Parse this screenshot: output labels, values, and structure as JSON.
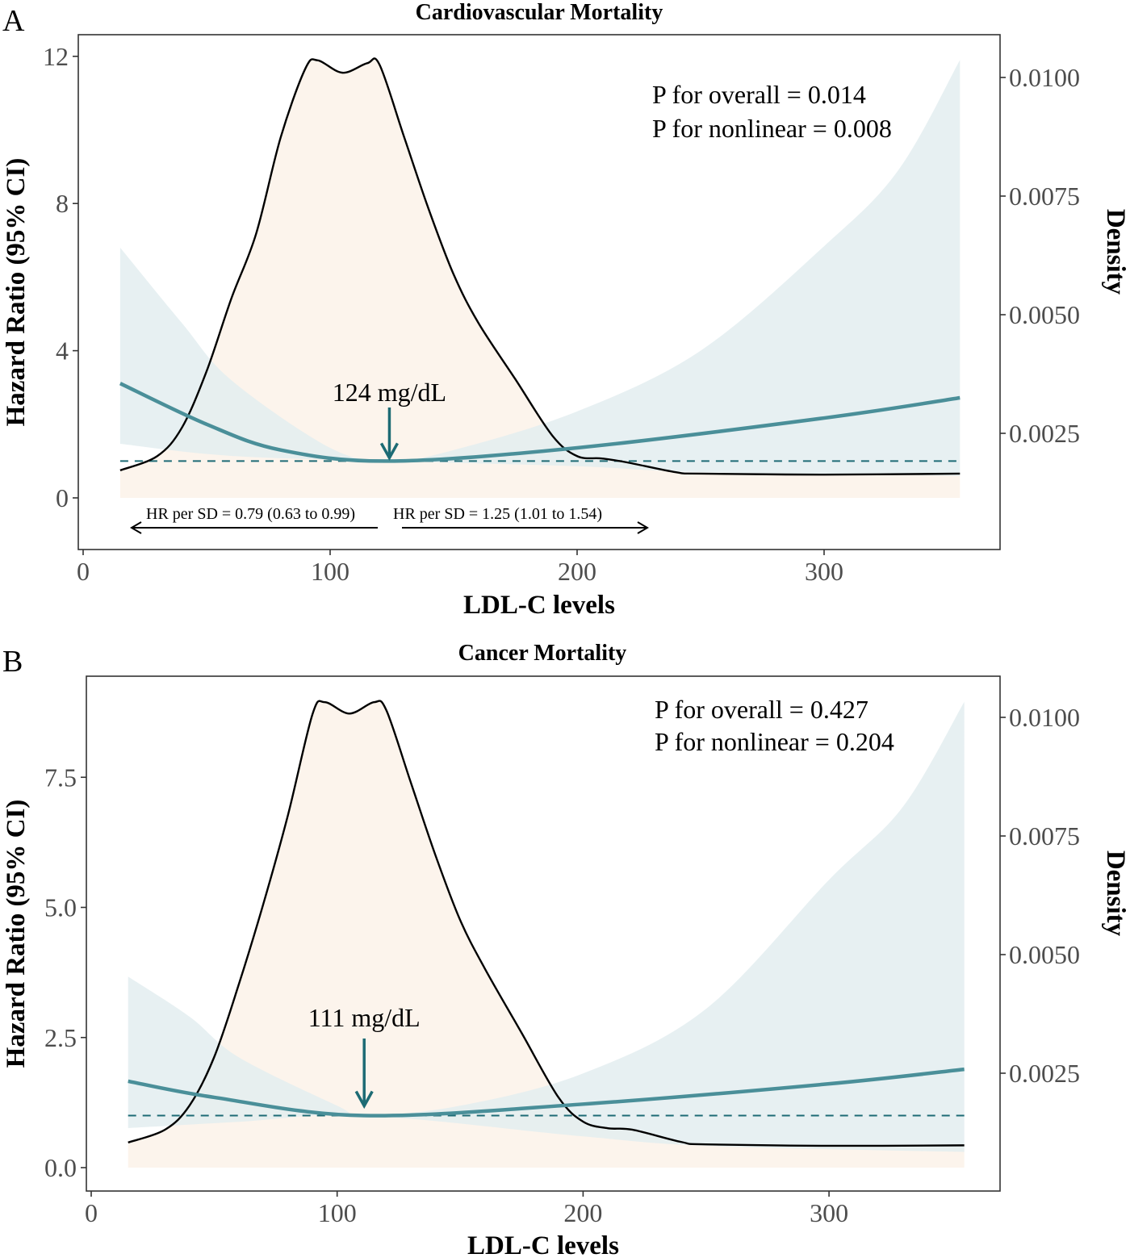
{
  "colors": {
    "ci_fill": "#e3edf0",
    "hr_line": "#4a8f99",
    "density_fill": "#fcf4ec",
    "ref_line": "#1e6b75",
    "arrow": "#1d6b74",
    "density_line": "#000000"
  },
  "chart_data": [
    {
      "panel_label": "A",
      "type": "line",
      "title": "Cardiovascular Mortality",
      "xlabel": "LDL-C levels",
      "ylabel": "Hazard Ratio (95% CI)",
      "y2label": "Density",
      "xlim": [
        0,
        370
      ],
      "ylim": [
        -1.4,
        12.6
      ],
      "y2lim": [
        0,
        0.0105
      ],
      "xticks": [
        0,
        100,
        200,
        300
      ],
      "xtick_labels": [
        "0",
        "100",
        "200",
        "300"
      ],
      "yticks": [
        0,
        4,
        8,
        12
      ],
      "ytick_labels": [
        "0",
        "4",
        "8",
        "12"
      ],
      "y2ticks": [
        0.0025,
        0.005,
        0.0075,
        0.01
      ],
      "y2tick_labels": [
        "0.0025",
        "0.0050",
        "0.0075",
        "0.0100"
      ],
      "reference_hr": 1,
      "hr": {
        "x": [
          15,
          50,
          80,
          124,
          200,
          300,
          355
        ],
        "y": [
          3.11,
          2.0,
          1.3,
          1.0,
          1.36,
          2.17,
          2.72
        ]
      },
      "ci_upper": {
        "x": [
          15,
          40,
          60,
          100,
          124,
          150,
          200,
          250,
          300,
          330,
          355
        ],
        "y": [
          6.8,
          4.75,
          3.2,
          1.36,
          1.0,
          1.3,
          2.35,
          4.0,
          6.84,
          8.9,
          11.9
        ]
      },
      "ci_lower": {
        "x": [
          15,
          60,
          124,
          200,
          250,
          355
        ],
        "y": [
          1.47,
          1.14,
          1.0,
          0.86,
          0.7,
          0.6
        ]
      },
      "density": {
        "x": [
          15,
          30,
          40,
          50,
          60,
          70,
          80,
          90,
          95,
          105,
          115,
          120,
          130,
          140,
          150,
          160,
          175,
          190,
          200,
          210,
          220,
          240,
          250,
          300,
          355
        ],
        "y": [
          0.00172,
          0.00202,
          0.00262,
          0.00381,
          0.00534,
          0.0067,
          0.00874,
          0.01019,
          0.01036,
          0.0101,
          0.0103,
          0.01027,
          0.00874,
          0.00721,
          0.00585,
          0.00483,
          0.00364,
          0.00245,
          0.00202,
          0.00197,
          0.00189,
          0.00168,
          0.00165,
          0.00163,
          0.00165
        ]
      },
      "annotations": {
        "p_overall": "P for overall = 0.014",
        "p_nonlinear": "P for nonlinear = 0.008",
        "inflection_label": "124 mg/dL",
        "inflection_x": 124,
        "hr_left": "HR per SD = 0.79 (0.63 to 0.99)",
        "hr_right": "HR per SD = 1.25 (1.01 to 1.54)"
      }
    },
    {
      "panel_label": "B",
      "type": "line",
      "title": "Cancer Mortality",
      "xlabel": "LDL-C levels",
      "ylabel": "Hazard Ratio (95% CI)",
      "y2label": "Density",
      "xlim": [
        0,
        370
      ],
      "ylim": [
        -0.45,
        9.4
      ],
      "y2lim": [
        0,
        0.0105
      ],
      "xticks": [
        0,
        100,
        200,
        300
      ],
      "xtick_labels": [
        "0",
        "100",
        "200",
        "300"
      ],
      "yticks": [
        0,
        2.5,
        5,
        7.5
      ],
      "ytick_labels": [
        "0.0",
        "2.5",
        "5.0",
        "7.5"
      ],
      "y2ticks": [
        0.0025,
        0.005,
        0.0075,
        0.01
      ],
      "y2tick_labels": [
        "0.0025",
        "0.0050",
        "0.0075",
        "0.0100"
      ],
      "reference_hr": 1,
      "hr": {
        "x": [
          15,
          50,
          111,
          200,
          300,
          355
        ],
        "y": [
          1.66,
          1.35,
          1.0,
          1.22,
          1.61,
          1.89
        ]
      },
      "ci_upper": {
        "x": [
          15,
          40,
          60,
          100,
          111,
          150,
          200,
          250,
          300,
          330,
          355
        ],
        "y": [
          3.67,
          2.9,
          2.12,
          1.19,
          1.0,
          1.19,
          1.81,
          3.05,
          5.53,
          6.93,
          8.95
        ]
      },
      "ci_lower": {
        "x": [
          15,
          60,
          111,
          200,
          250,
          355
        ],
        "y": [
          0.76,
          0.88,
          1.0,
          0.6,
          0.42,
          0.3
        ]
      },
      "density": {
        "x": [
          15,
          30,
          40,
          50,
          60,
          70,
          80,
          90,
          95,
          105,
          115,
          120,
          130,
          140,
          150,
          160,
          175,
          190,
          200,
          210,
          220,
          240,
          250,
          300,
          355
        ],
        "y": [
          0.00104,
          0.00131,
          0.00182,
          0.00284,
          0.00437,
          0.00607,
          0.00794,
          0.01007,
          0.01032,
          0.01008,
          0.01032,
          0.01015,
          0.00862,
          0.00709,
          0.00573,
          0.00471,
          0.00335,
          0.00199,
          0.00148,
          0.00134,
          0.00131,
          0.00105,
          0.001,
          0.00097,
          0.00098
        ]
      },
      "annotations": {
        "p_overall": "P for overall = 0.427",
        "p_nonlinear": "P for nonlinear = 0.204",
        "inflection_label": "111 mg/dL",
        "inflection_x": 111
      }
    }
  ]
}
